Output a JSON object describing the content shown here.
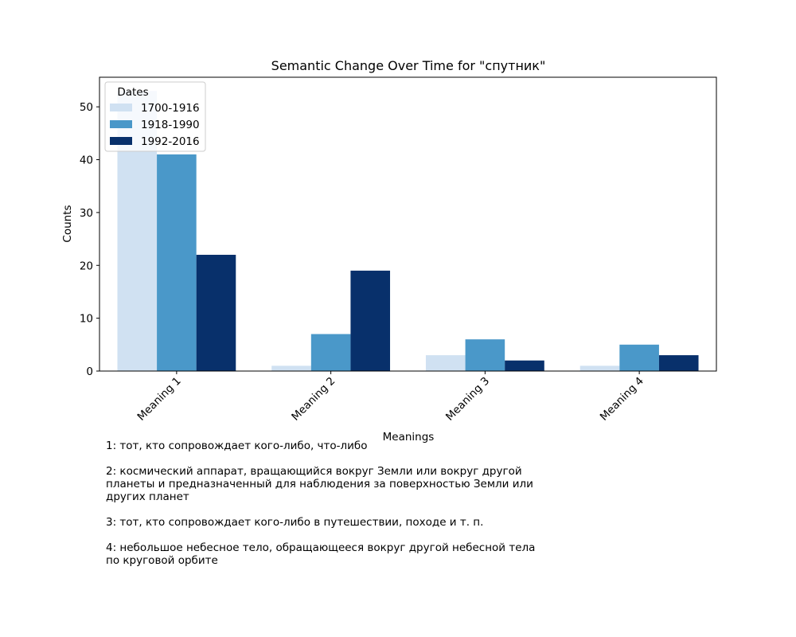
{
  "chart_data": {
    "type": "bar",
    "title": "Semantic Change Over Time for \"спутник\"",
    "xlabel": "Meanings",
    "ylabel": "Counts",
    "categories": [
      "Meaning 1",
      "Meaning 2",
      "Meaning 3",
      "Meaning 4"
    ],
    "ylim": [
      0,
      55.6
    ],
    "yticks": [
      0,
      10,
      20,
      30,
      40,
      50
    ],
    "legend": {
      "title": "Dates",
      "placement": "top-left"
    },
    "grid": false,
    "series": [
      {
        "name": "1700-1916",
        "color": "#d0e1f2",
        "values": [
          53,
          1,
          3,
          1
        ]
      },
      {
        "name": "1918-1990",
        "color": "#4a98c9",
        "values": [
          41,
          7,
          6,
          5
        ]
      },
      {
        "name": "1992-2016",
        "color": "#08306b",
        "values": [
          22,
          19,
          2,
          3
        ]
      }
    ]
  },
  "notes": [
    "1: тот, кто сопровождает кого-либо, что-либо",
    "2: космический аппарат, вращающийся вокруг Земли или вокруг другой\nпланеты и предназначенный для наблюдения за поверхностью Земли или\nдругих планет",
    "3: тот, кто сопровождает кого-либо в путешествии, походе и т. п.",
    "4: небольшое небесное тело, обращающееся вокруг другой небесной тела\nпо круговой орбите"
  ]
}
